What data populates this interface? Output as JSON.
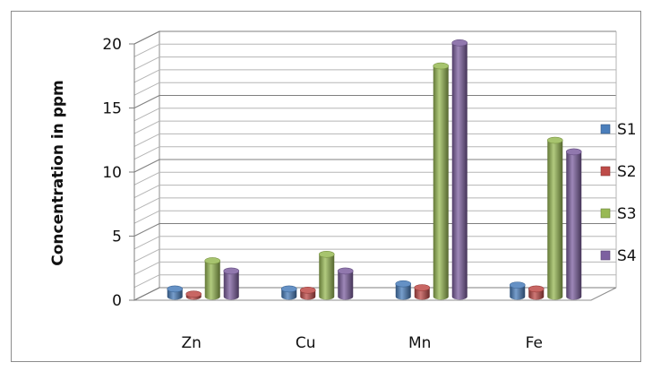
{
  "chart_data": {
    "type": "bar",
    "style": "3d-cylinder",
    "categories": [
      "Zn",
      "Cu",
      "Mn",
      "Fe"
    ],
    "series": [
      {
        "name": "S1",
        "color": "#4a7ebb",
        "values": [
          0.6,
          0.6,
          1.0,
          0.9
        ]
      },
      {
        "name": "S2",
        "color": "#be4b48",
        "values": [
          0.2,
          0.5,
          0.7,
          0.6
        ]
      },
      {
        "name": "S3",
        "color": "#98b954",
        "values": [
          2.8,
          3.3,
          18.0,
          12.2
        ]
      },
      {
        "name": "S4",
        "color": "#7d60a0",
        "values": [
          2.0,
          2.0,
          19.8,
          11.3
        ]
      }
    ],
    "title": "",
    "xlabel": "",
    "ylabel": "Concentration in ppm",
    "ylim": [
      0,
      20
    ],
    "yticks": [
      0,
      5,
      10,
      15,
      20
    ],
    "grid": true,
    "legend": "right"
  }
}
